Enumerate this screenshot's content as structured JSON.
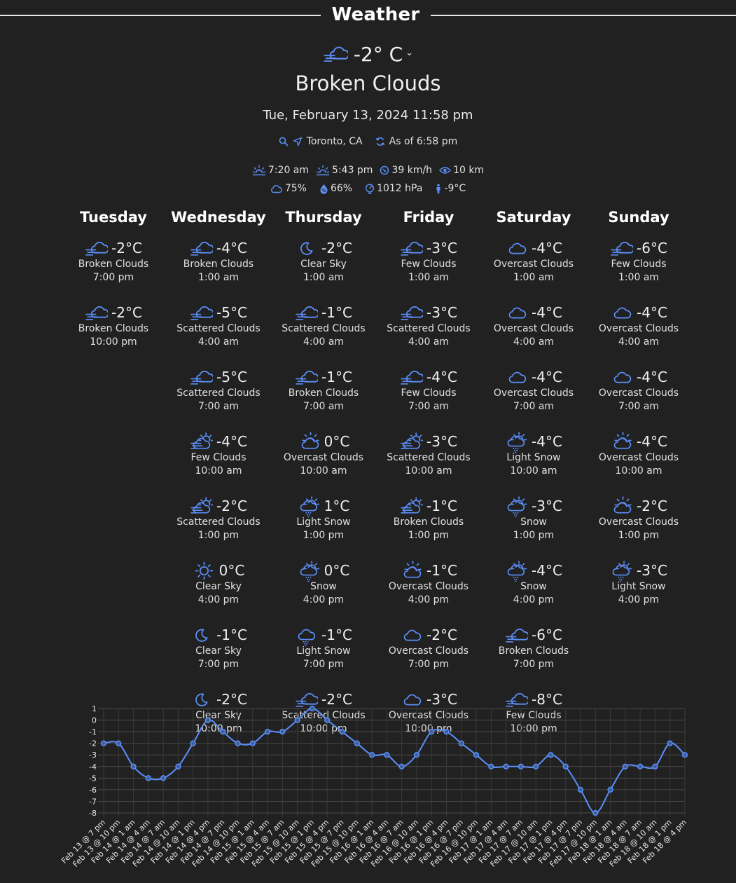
{
  "header": {
    "title": "Weather"
  },
  "current": {
    "temp": "-2° C",
    "condition": "Broken Clouds",
    "datetime": "Tue, February 13, 2024 11:58 pm",
    "location": "Toronto, CA",
    "as_of": "As of 6:58 pm",
    "sunrise": "7:20 am",
    "sunset": "5:43 pm",
    "wind": "39 km/h",
    "visibility": "10 km",
    "cloud_cover": "75%",
    "humidity": "66%",
    "pressure": "1012 hPa",
    "feels_like": "-9°C"
  },
  "icons": {
    "current": "windy-cloud-icon",
    "search": "search-icon",
    "locate": "location-arrow-icon",
    "refresh": "refresh-icon",
    "sunrise": "sunrise-icon",
    "sunset": "sunset-icon",
    "wind": "wind-gauge-icon",
    "visibility": "eye-icon",
    "cloud": "cloud-icon",
    "humidity": "droplet-icon",
    "pressure": "gauge-icon",
    "feels_like": "person-icon"
  },
  "accent_color": "#5b8ff9",
  "forecast": [
    {
      "day": "Tuesday",
      "slots": [
        {
          "icon": "windy-cloud-icon",
          "temp": "-2°C",
          "cond": "Broken Clouds",
          "time": "7:00 pm"
        },
        {
          "icon": "windy-cloud-icon",
          "temp": "-2°C",
          "cond": "Broken Clouds",
          "time": "10:00 pm"
        }
      ]
    },
    {
      "day": "Wednesday",
      "slots": [
        {
          "icon": "windy-cloud-icon",
          "temp": "-4°C",
          "cond": "Broken Clouds",
          "time": "1:00 am"
        },
        {
          "icon": "windy-cloud-icon",
          "temp": "-5°C",
          "cond": "Scattered Clouds",
          "time": "4:00 am"
        },
        {
          "icon": "windy-cloud-icon",
          "temp": "-5°C",
          "cond": "Scattered Clouds",
          "time": "7:00 am"
        },
        {
          "icon": "sun-windy-cloud-icon",
          "temp": "-4°C",
          "cond": "Few Clouds",
          "time": "10:00 am"
        },
        {
          "icon": "sun-windy-cloud-icon",
          "temp": "-2°C",
          "cond": "Scattered Clouds",
          "time": "1:00 pm"
        },
        {
          "icon": "sun-icon",
          "temp": "0°C",
          "cond": "Clear Sky",
          "time": "4:00 pm"
        },
        {
          "icon": "moon-icon",
          "temp": "-1°C",
          "cond": "Clear Sky",
          "time": "7:00 pm"
        },
        {
          "icon": "moon-icon",
          "temp": "-2°C",
          "cond": "Clear Sky",
          "time": "10:00 pm"
        }
      ]
    },
    {
      "day": "Thursday",
      "slots": [
        {
          "icon": "moon-icon",
          "temp": "-2°C",
          "cond": "Clear Sky",
          "time": "1:00 am"
        },
        {
          "icon": "windy-cloud-icon",
          "temp": "-1°C",
          "cond": "Scattered Clouds",
          "time": "4:00 am"
        },
        {
          "icon": "windy-cloud-icon",
          "temp": "-1°C",
          "cond": "Broken Clouds",
          "time": "7:00 am"
        },
        {
          "icon": "sun-cloud-icon",
          "temp": "0°C",
          "cond": "Overcast Clouds",
          "time": "10:00 am"
        },
        {
          "icon": "sun-snow-cloud-icon",
          "temp": "1°C",
          "cond": "Light Snow",
          "time": "1:00 pm"
        },
        {
          "icon": "sun-snow-cloud-icon",
          "temp": "0°C",
          "cond": "Snow",
          "time": "4:00 pm"
        },
        {
          "icon": "snow-cloud-icon",
          "temp": "-1°C",
          "cond": "Light Snow",
          "time": "7:00 pm"
        },
        {
          "icon": "windy-cloud-icon",
          "temp": "-2°C",
          "cond": "Scattered Clouds",
          "time": "10:00 pm"
        }
      ]
    },
    {
      "day": "Friday",
      "slots": [
        {
          "icon": "windy-cloud-icon",
          "temp": "-3°C",
          "cond": "Few Clouds",
          "time": "1:00 am"
        },
        {
          "icon": "windy-cloud-icon",
          "temp": "-3°C",
          "cond": "Scattered Clouds",
          "time": "4:00 am"
        },
        {
          "icon": "windy-cloud-icon",
          "temp": "-4°C",
          "cond": "Few Clouds",
          "time": "7:00 am"
        },
        {
          "icon": "sun-windy-cloud-icon",
          "temp": "-3°C",
          "cond": "Scattered Clouds",
          "time": "10:00 am"
        },
        {
          "icon": "sun-windy-cloud-icon",
          "temp": "-1°C",
          "cond": "Broken Clouds",
          "time": "1:00 pm"
        },
        {
          "icon": "sun-cloud-icon",
          "temp": "-1°C",
          "cond": "Overcast Clouds",
          "time": "4:00 pm"
        },
        {
          "icon": "cloud-icon",
          "temp": "-2°C",
          "cond": "Overcast Clouds",
          "time": "7:00 pm"
        },
        {
          "icon": "cloud-icon",
          "temp": "-3°C",
          "cond": "Overcast Clouds",
          "time": "10:00 pm"
        }
      ]
    },
    {
      "day": "Saturday",
      "slots": [
        {
          "icon": "cloud-icon",
          "temp": "-4°C",
          "cond": "Overcast Clouds",
          "time": "1:00 am"
        },
        {
          "icon": "cloud-icon",
          "temp": "-4°C",
          "cond": "Overcast Clouds",
          "time": "4:00 am"
        },
        {
          "icon": "cloud-icon",
          "temp": "-4°C",
          "cond": "Overcast Clouds",
          "time": "7:00 am"
        },
        {
          "icon": "sun-snow-cloud-icon",
          "temp": "-4°C",
          "cond": "Light Snow",
          "time": "10:00 am"
        },
        {
          "icon": "sun-snow-cloud-icon",
          "temp": "-3°C",
          "cond": "Snow",
          "time": "1:00 pm"
        },
        {
          "icon": "sun-snow-cloud-icon",
          "temp": "-4°C",
          "cond": "Snow",
          "time": "4:00 pm"
        },
        {
          "icon": "windy-cloud-icon",
          "temp": "-6°C",
          "cond": "Broken Clouds",
          "time": "7:00 pm"
        },
        {
          "icon": "windy-cloud-icon",
          "temp": "-8°C",
          "cond": "Few Clouds",
          "time": "10:00 pm"
        }
      ]
    },
    {
      "day": "Sunday",
      "slots": [
        {
          "icon": "windy-cloud-icon",
          "temp": "-6°C",
          "cond": "Few Clouds",
          "time": "1:00 am"
        },
        {
          "icon": "cloud-icon",
          "temp": "-4°C",
          "cond": "Overcast Clouds",
          "time": "4:00 am"
        },
        {
          "icon": "cloud-icon",
          "temp": "-4°C",
          "cond": "Overcast Clouds",
          "time": "7:00 am"
        },
        {
          "icon": "sun-cloud-icon",
          "temp": "-4°C",
          "cond": "Overcast Clouds",
          "time": "10:00 am"
        },
        {
          "icon": "sun-cloud-icon",
          "temp": "-2°C",
          "cond": "Overcast Clouds",
          "time": "1:00 pm"
        },
        {
          "icon": "sun-snow-cloud-icon",
          "temp": "-3°C",
          "cond": "Light Snow",
          "time": "4:00 pm"
        }
      ]
    }
  ],
  "chart_data": {
    "type": "line",
    "title": "",
    "xlabel": "",
    "ylabel": "",
    "ylim": [
      -8,
      1
    ],
    "yticks": [
      1,
      0,
      -1,
      -2,
      -3,
      -4,
      -5,
      -6,
      -7,
      -8
    ],
    "grid": true,
    "color": "#5b8ff9",
    "x": [
      "Feb 13 @ 7 pm",
      "Feb 13 @ 10 pm",
      "Feb 14 @ 1 am",
      "Feb 14 @ 4 am",
      "Feb 14 @ 7 am",
      "Feb 14 @ 10 am",
      "Feb 14 @ 1 pm",
      "Feb 14 @ 4 pm",
      "Feb 14 @ 7 pm",
      "Feb 14 @ 10 pm",
      "Feb 15 @ 1 am",
      "Feb 15 @ 4 am",
      "Feb 15 @ 7 am",
      "Feb 15 @ 10 am",
      "Feb 15 @ 1 pm",
      "Feb 15 @ 4 pm",
      "Feb 15 @ 7 pm",
      "Feb 15 @ 10 pm",
      "Feb 16 @ 1 am",
      "Feb 16 @ 4 am",
      "Feb 16 @ 7 am",
      "Feb 16 @ 10 am",
      "Feb 16 @ 1 pm",
      "Feb 16 @ 4 pm",
      "Feb 16 @ 7 pm",
      "Feb 16 @ 10 pm",
      "Feb 17 @ 1 am",
      "Feb 17 @ 4 am",
      "Feb 17 @ 7 am",
      "Feb 17 @ 10 am",
      "Feb 17 @ 1 pm",
      "Feb 17 @ 4 pm",
      "Feb 17 @ 7 pm",
      "Feb 17 @ 10 pm",
      "Feb 18 @ 1 am",
      "Feb 18 @ 4 am",
      "Feb 18 @ 7 am",
      "Feb 18 @ 10 am",
      "Feb 18 @ 1 pm",
      "Feb 18 @ 4 pm"
    ],
    "values": [
      -2,
      -2,
      -4,
      -5,
      -5,
      -4,
      -2,
      0,
      -1,
      -2,
      -2,
      -1,
      -1,
      0,
      1,
      0,
      -1,
      -2,
      -3,
      -3,
      -4,
      -3,
      -1,
      -1,
      -2,
      -3,
      -4,
      -4,
      -4,
      -4,
      -3,
      -4,
      -6,
      -8,
      -6,
      -4,
      -4,
      -4,
      -2,
      -3
    ]
  }
}
